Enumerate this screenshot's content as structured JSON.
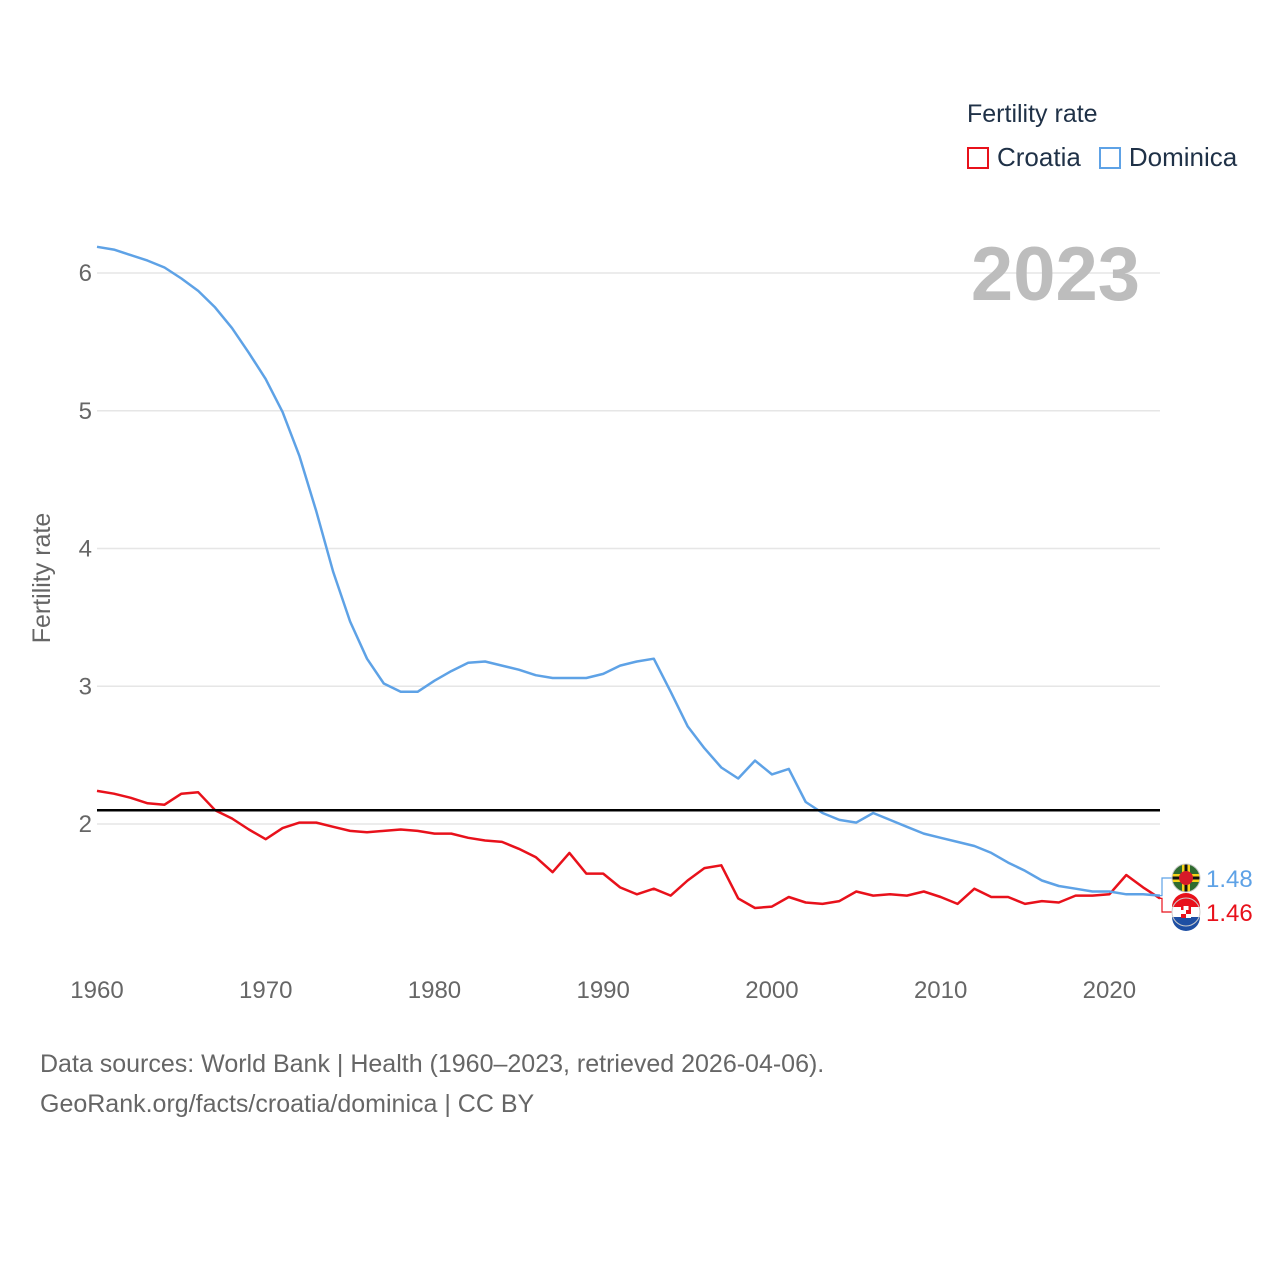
{
  "legend": {
    "title": "Fertility rate",
    "items": [
      {
        "label": "Croatia",
        "color": "#e8111b"
      },
      {
        "label": "Dominica",
        "color": "#5ea2e6"
      }
    ]
  },
  "source": {
    "line1": "Data sources: World Bank | Health (1960–2023, retrieved 2026-04-06).",
    "line2": "GeoRank.org/facts/croatia/dominica | CC BY"
  },
  "chart_data": {
    "type": "line",
    "title": "Fertility rate",
    "current_year": "2023",
    "xlabel": "",
    "ylabel": "Fertility rate",
    "xlim": [
      1960,
      2023
    ],
    "ylim": [
      1.0,
      6.2
    ],
    "xticks": [
      1960,
      1970,
      1980,
      1990,
      2000,
      2010,
      2020
    ],
    "yticks": [
      2,
      3,
      4,
      5,
      6
    ],
    "grid": true,
    "reference_line": 2.1,
    "x": [
      1960,
      1961,
      1962,
      1963,
      1964,
      1965,
      1966,
      1967,
      1968,
      1969,
      1970,
      1971,
      1972,
      1973,
      1974,
      1975,
      1976,
      1977,
      1978,
      1979,
      1980,
      1981,
      1982,
      1983,
      1984,
      1985,
      1986,
      1987,
      1988,
      1989,
      1990,
      1991,
      1992,
      1993,
      1994,
      1995,
      1996,
      1997,
      1998,
      1999,
      2000,
      2001,
      2002,
      2003,
      2004,
      2005,
      2006,
      2007,
      2008,
      2009,
      2010,
      2011,
      2012,
      2013,
      2014,
      2015,
      2016,
      2017,
      2018,
      2019,
      2020,
      2021,
      2022,
      2023
    ],
    "series": [
      {
        "name": "Croatia",
        "color": "#e8111b",
        "end_label": "1.46",
        "values": [
          2.24,
          2.22,
          2.19,
          2.15,
          2.14,
          2.22,
          2.23,
          2.1,
          2.04,
          1.96,
          1.89,
          1.97,
          2.01,
          2.01,
          1.98,
          1.95,
          1.94,
          1.95,
          1.96,
          1.95,
          1.93,
          1.93,
          1.9,
          1.88,
          1.87,
          1.82,
          1.76,
          1.65,
          1.79,
          1.64,
          1.64,
          1.54,
          1.49,
          1.53,
          1.48,
          1.59,
          1.68,
          1.7,
          1.46,
          1.39,
          1.4,
          1.47,
          1.43,
          1.42,
          1.44,
          1.51,
          1.48,
          1.49,
          1.48,
          1.51,
          1.47,
          1.42,
          1.53,
          1.47,
          1.47,
          1.42,
          1.44,
          1.43,
          1.48,
          1.48,
          1.49,
          1.63,
          1.54,
          1.46
        ]
      },
      {
        "name": "Dominica",
        "color": "#5ea2e6",
        "end_label": "1.48",
        "values": [
          6.19,
          6.17,
          6.13,
          6.09,
          6.04,
          5.96,
          5.87,
          5.75,
          5.6,
          5.42,
          5.23,
          4.99,
          4.67,
          4.27,
          3.83,
          3.47,
          3.2,
          3.02,
          2.96,
          2.96,
          3.04,
          3.11,
          3.17,
          3.18,
          3.15,
          3.12,
          3.08,
          3.06,
          3.06,
          3.06,
          3.09,
          3.15,
          3.18,
          3.2,
          2.96,
          2.71,
          2.55,
          2.41,
          2.33,
          2.46,
          2.36,
          2.4,
          2.16,
          2.08,
          2.03,
          2.01,
          2.08,
          2.03,
          1.98,
          1.93,
          1.9,
          1.87,
          1.84,
          1.79,
          1.72,
          1.66,
          1.59,
          1.55,
          1.53,
          1.51,
          1.51,
          1.49,
          1.49,
          1.48
        ]
      }
    ]
  }
}
